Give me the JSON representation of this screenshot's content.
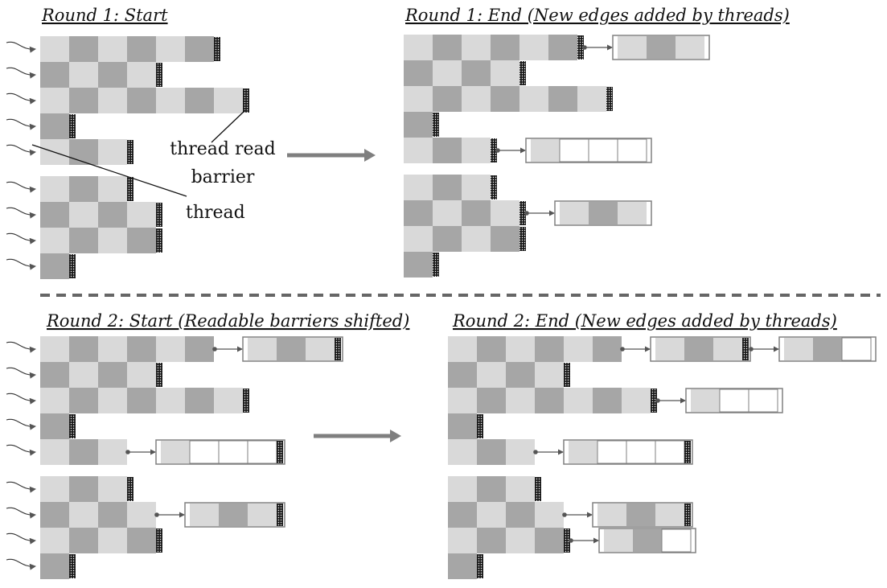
{
  "colors": {
    "light": "#d9d9d9",
    "dark": "#a6a6a6",
    "border": "#808080",
    "barrier": "#1a1a1a",
    "arrow": "#7f7f7f",
    "separator": "#666666",
    "text": "#111111"
  },
  "panels": [
    {
      "id": "r1-start",
      "title": "Round 1: Start",
      "rows": [
        {
          "pattern": [
            "L",
            "D",
            "L",
            "D",
            "L",
            "D"
          ],
          "barrier": true
        },
        {
          "pattern": [
            "D",
            "L",
            "D",
            "L"
          ],
          "barrier": true
        },
        {
          "pattern": [
            "L",
            "D",
            "L",
            "D",
            "L",
            "D",
            "L"
          ],
          "barrier": true
        },
        {
          "pattern": [
            "D"
          ],
          "barrier": true
        },
        {
          "pattern": [
            "L",
            "D",
            "L"
          ],
          "barrier": true
        },
        {
          "pattern": [
            "L",
            "D",
            "L"
          ],
          "barrier": true
        },
        {
          "pattern": [
            "D",
            "L",
            "D",
            "L"
          ],
          "barrier": true
        },
        {
          "pattern": [
            "L",
            "D",
            "L",
            "D"
          ],
          "barrier": true
        },
        {
          "pattern": [
            "D"
          ],
          "barrier": true
        }
      ]
    },
    {
      "id": "r1-end",
      "title": "Round 1: End (New edges added by threads)",
      "rows": [
        {
          "pattern": [
            "L",
            "D",
            "L",
            "D",
            "L",
            "D"
          ],
          "barrier": true,
          "ext": [
            {
              "pattern": [
                "L",
                "D",
                "L"
              ],
              "barrier": false
            }
          ]
        },
        {
          "pattern": [
            "D",
            "L",
            "D",
            "L"
          ],
          "barrier": true
        },
        {
          "pattern": [
            "L",
            "D",
            "L",
            "D",
            "L",
            "D",
            "L"
          ],
          "barrier": true
        },
        {
          "pattern": [
            "D"
          ],
          "barrier": true
        },
        {
          "pattern": [
            "L",
            "D",
            "L"
          ],
          "barrier": true,
          "ext": [
            {
              "pattern": [
                "L",
                "W",
                "W",
                "W"
              ],
              "barrier": false
            }
          ]
        },
        {
          "pattern": [
            "L",
            "D",
            "L"
          ],
          "barrier": true
        },
        {
          "pattern": [
            "D",
            "L",
            "D",
            "L"
          ],
          "barrier": true,
          "ext": [
            {
              "pattern": [
                "L",
                "D",
                "L"
              ],
              "barrier": false
            }
          ]
        },
        {
          "pattern": [
            "L",
            "D",
            "L",
            "D"
          ],
          "barrier": true
        },
        {
          "pattern": [
            "D"
          ],
          "barrier": true
        }
      ]
    },
    {
      "id": "r2-start",
      "title": "Round 2: Start (Readable barriers shifted)",
      "rows": [
        {
          "pattern": [
            "L",
            "D",
            "L",
            "D",
            "L",
            "D"
          ],
          "barrier": false,
          "ext": [
            {
              "pattern": [
                "L",
                "D",
                "L"
              ],
              "barrier": true
            }
          ]
        },
        {
          "pattern": [
            "D",
            "L",
            "D",
            "L"
          ],
          "barrier": true
        },
        {
          "pattern": [
            "L",
            "D",
            "L",
            "D",
            "L",
            "D",
            "L"
          ],
          "barrier": true
        },
        {
          "pattern": [
            "D"
          ],
          "barrier": true
        },
        {
          "pattern": [
            "L",
            "D",
            "L"
          ],
          "barrier": false,
          "ext": [
            {
              "pattern": [
                "L",
                "W",
                "W",
                "W"
              ],
              "barrier": true
            }
          ]
        },
        {
          "pattern": [
            "L",
            "D",
            "L"
          ],
          "barrier": true
        },
        {
          "pattern": [
            "D",
            "L",
            "D",
            "L"
          ],
          "barrier": false,
          "ext": [
            {
              "pattern": [
                "L",
                "D",
                "L"
              ],
              "barrier": true
            }
          ]
        },
        {
          "pattern": [
            "L",
            "D",
            "L",
            "D"
          ],
          "barrier": true
        },
        {
          "pattern": [
            "D"
          ],
          "barrier": true
        }
      ]
    },
    {
      "id": "r2-end",
      "title": "Round 2: End (New edges added by threads)",
      "rows": [
        {
          "pattern": [
            "L",
            "D",
            "L",
            "D",
            "L",
            "D"
          ],
          "barrier": false,
          "ext": [
            {
              "pattern": [
                "L",
                "D",
                "L"
              ],
              "barrier": true
            },
            {
              "pattern": [
                "L",
                "D",
                "W"
              ],
              "barrier": false
            }
          ]
        },
        {
          "pattern": [
            "D",
            "L",
            "D",
            "L"
          ],
          "barrier": true
        },
        {
          "pattern": [
            "L",
            "D",
            "L",
            "D",
            "L",
            "D",
            "L"
          ],
          "barrier": true,
          "ext": [
            {
              "pattern": [
                "L",
                "W",
                "W"
              ],
              "barrier": false
            }
          ]
        },
        {
          "pattern": [
            "D"
          ],
          "barrier": true
        },
        {
          "pattern": [
            "L",
            "D",
            "L"
          ],
          "barrier": false,
          "ext": [
            {
              "pattern": [
                "L",
                "W",
                "W",
                "W"
              ],
              "barrier": true
            }
          ]
        },
        {
          "pattern": [
            "L",
            "D",
            "L"
          ],
          "barrier": true
        },
        {
          "pattern": [
            "D",
            "L",
            "D",
            "L"
          ],
          "barrier": false,
          "ext": [
            {
              "pattern": [
                "L",
                "D",
                "L"
              ],
              "barrier": true
            }
          ]
        },
        {
          "pattern": [
            "L",
            "D",
            "L",
            "D"
          ],
          "barrier": true,
          "ext": [
            {
              "pattern": [
                "L",
                "D",
                "W"
              ],
              "barrier": false
            }
          ]
        },
        {
          "pattern": [
            "D"
          ],
          "barrier": true
        }
      ]
    }
  ],
  "annotations": {
    "barrier_label_line1": "thread read",
    "barrier_label_line2": "barrier",
    "thread_label": "thread"
  }
}
